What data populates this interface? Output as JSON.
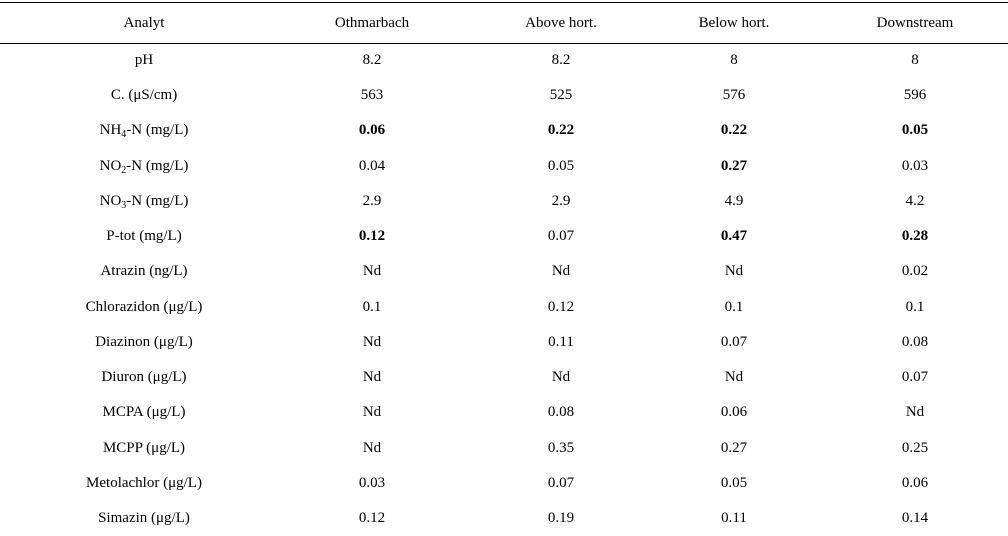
{
  "table": {
    "headers": [
      "Analyt",
      "Othmarbach",
      "Above hort.",
      "Below hort.",
      "Downstream"
    ],
    "rows": [
      {
        "analyte": {
          "pre": "pH",
          "sub": "",
          "post": ""
        },
        "values": [
          {
            "text": "8.2",
            "bold": false
          },
          {
            "text": "8.2",
            "bold": false
          },
          {
            "text": "8",
            "bold": false
          },
          {
            "text": "8",
            "bold": false
          }
        ]
      },
      {
        "analyte": {
          "pre": "C. (μS/cm)",
          "sub": "",
          "post": ""
        },
        "values": [
          {
            "text": "563",
            "bold": false
          },
          {
            "text": "525",
            "bold": false
          },
          {
            "text": "576",
            "bold": false
          },
          {
            "text": "596",
            "bold": false
          }
        ]
      },
      {
        "analyte": {
          "pre": "NH",
          "sub": "4",
          "post": "-N (mg/L)"
        },
        "values": [
          {
            "text": "0.06",
            "bold": true
          },
          {
            "text": "0.22",
            "bold": true
          },
          {
            "text": "0.22",
            "bold": true
          },
          {
            "text": "0.05",
            "bold": true
          }
        ]
      },
      {
        "analyte": {
          "pre": "NO",
          "sub": "2",
          "post": "-N (mg/L)"
        },
        "values": [
          {
            "text": "0.04",
            "bold": false
          },
          {
            "text": "0.05",
            "bold": false
          },
          {
            "text": "0.27",
            "bold": true
          },
          {
            "text": "0.03",
            "bold": false
          }
        ]
      },
      {
        "analyte": {
          "pre": "NO",
          "sub": "3",
          "post": "-N (mg/L)"
        },
        "values": [
          {
            "text": "2.9",
            "bold": false
          },
          {
            "text": "2.9",
            "bold": false
          },
          {
            "text": "4.9",
            "bold": false
          },
          {
            "text": "4.2",
            "bold": false
          }
        ]
      },
      {
        "analyte": {
          "pre": "P-tot (mg/L)",
          "sub": "",
          "post": ""
        },
        "values": [
          {
            "text": "0.12",
            "bold": true
          },
          {
            "text": "0.07",
            "bold": false
          },
          {
            "text": "0.47",
            "bold": true
          },
          {
            "text": "0.28",
            "bold": true
          }
        ]
      },
      {
        "analyte": {
          "pre": "Atrazin (ng/L)",
          "sub": "",
          "post": ""
        },
        "values": [
          {
            "text": "Nd",
            "bold": false
          },
          {
            "text": "Nd",
            "bold": false
          },
          {
            "text": "Nd",
            "bold": false
          },
          {
            "text": "0.02",
            "bold": false
          }
        ]
      },
      {
        "analyte": {
          "pre": "Chlorazidon (μg/L)",
          "sub": "",
          "post": ""
        },
        "values": [
          {
            "text": "0.1",
            "bold": false
          },
          {
            "text": "0.12",
            "bold": false
          },
          {
            "text": "0.1",
            "bold": false
          },
          {
            "text": "0.1",
            "bold": false
          }
        ]
      },
      {
        "analyte": {
          "pre": "Diazinon (μg/L)",
          "sub": "",
          "post": ""
        },
        "values": [
          {
            "text": "Nd",
            "bold": false
          },
          {
            "text": "0.11",
            "bold": false
          },
          {
            "text": "0.07",
            "bold": false
          },
          {
            "text": "0.08",
            "bold": false
          }
        ]
      },
      {
        "analyte": {
          "pre": "Diuron (μg/L)",
          "sub": "",
          "post": ""
        },
        "values": [
          {
            "text": "Nd",
            "bold": false
          },
          {
            "text": "Nd",
            "bold": false
          },
          {
            "text": "Nd",
            "bold": false
          },
          {
            "text": "0.07",
            "bold": false
          }
        ]
      },
      {
        "analyte": {
          "pre": "MCPA (μg/L)",
          "sub": "",
          "post": ""
        },
        "values": [
          {
            "text": "Nd",
            "bold": false
          },
          {
            "text": "0.08",
            "bold": false
          },
          {
            "text": "0.06",
            "bold": false
          },
          {
            "text": "Nd",
            "bold": false
          }
        ]
      },
      {
        "analyte": {
          "pre": "MCPP (μg/L)",
          "sub": "",
          "post": ""
        },
        "values": [
          {
            "text": "Nd",
            "bold": false
          },
          {
            "text": "0.35",
            "bold": false
          },
          {
            "text": "0.27",
            "bold": false
          },
          {
            "text": "0.25",
            "bold": false
          }
        ]
      },
      {
        "analyte": {
          "pre": "Metolachlor (μg/L)",
          "sub": "",
          "post": ""
        },
        "values": [
          {
            "text": "0.03",
            "bold": false
          },
          {
            "text": "0.07",
            "bold": false
          },
          {
            "text": "0.05",
            "bold": false
          },
          {
            "text": "0.06",
            "bold": false
          }
        ]
      },
      {
        "analyte": {
          "pre": "Simazin (μg/L)",
          "sub": "",
          "post": ""
        },
        "values": [
          {
            "text": "0.12",
            "bold": false
          },
          {
            "text": "0.19",
            "bold": false
          },
          {
            "text": "0.11",
            "bold": false
          },
          {
            "text": "0.14",
            "bold": false
          }
        ]
      }
    ]
  }
}
